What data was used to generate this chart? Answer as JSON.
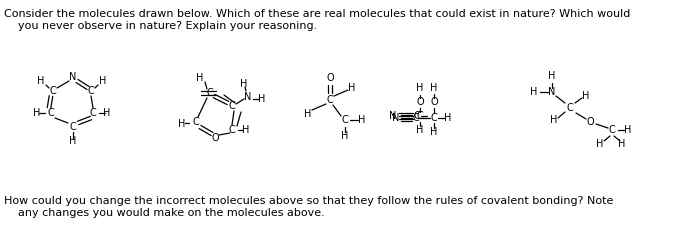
{
  "background_color": "#ffffff",
  "figsize": [
    6.74,
    2.46
  ],
  "dpi": 100,
  "font_size": 8.0,
  "top_line1": "Consider the molecules drawn below. Which of these are real molecules that could exist in nature? Which would",
  "top_line2": "you never observe in nature? Explain your reasoning.",
  "bot_line1": "How could you change the incorrect molecules above so that they follow the rules of covalent bonding? Note",
  "bot_line2": "any changes you would make on the molecules above."
}
